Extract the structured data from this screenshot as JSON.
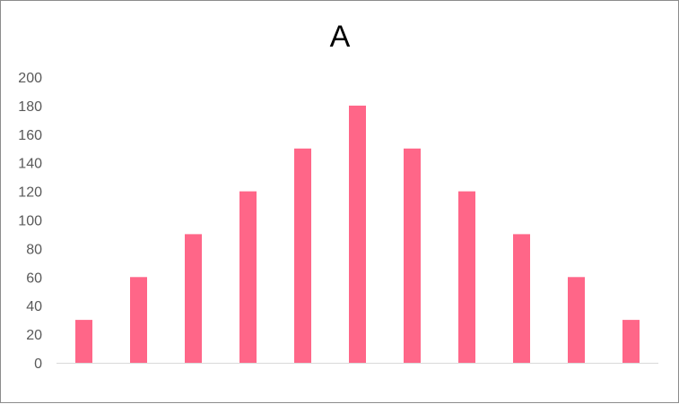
{
  "chart_data": {
    "type": "bar",
    "title": "A",
    "xlabel": "",
    "ylabel": "",
    "categories": [
      "1",
      "2",
      "3",
      "4",
      "5",
      "6",
      "7",
      "8",
      "9",
      "10",
      "11"
    ],
    "series": [
      {
        "values": [
          30,
          60,
          90,
          120,
          150,
          180,
          150,
          120,
          90,
          60,
          30
        ]
      }
    ],
    "ylim": [
      0,
      200
    ],
    "yticks": [
      "0",
      "20",
      "40",
      "60",
      "80",
      "100",
      "120",
      "140",
      "160",
      "180",
      "200"
    ],
    "show_x_tick_labels": false,
    "grid": false,
    "legend": "none",
    "colors": {
      "bar": "#ff6688",
      "axis": "#d9d9d9",
      "tick_text": "#595959",
      "title_text": "#000000",
      "frame": "#8c8c8c"
    }
  }
}
